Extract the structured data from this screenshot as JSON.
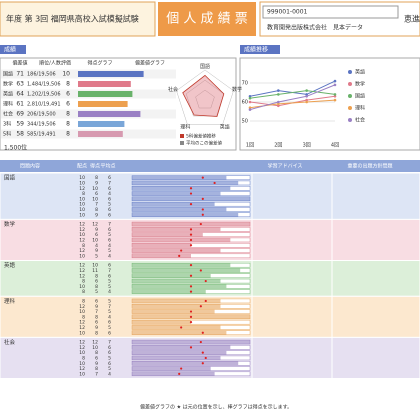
{
  "header": {
    "exam": "年度 第 3回 福岡県高校入試模擬試験",
    "title": "個 人 成 績 票",
    "student_id": "999001-0001",
    "school": "恵進塾",
    "publisher": "教育開発出版株式会社　見本データ"
  },
  "summary": {
    "label": "成績",
    "columns": [
      "偏差値",
      "順位/人数",
      "評価",
      "得点グラフ",
      "偏差値グラフ"
    ],
    "rows": [
      {
        "name": "国語",
        "color": "#5b74c2",
        "deviation": 71,
        "rank": "186/19,506",
        "grade": 10
      },
      {
        "name": "数学",
        "color": "#e07a8a",
        "deviation": 63,
        "rank": "1,484/19,506",
        "grade": 8
      },
      {
        "name": "英語",
        "color": "#69b26a",
        "deviation": 64,
        "rank": "1,202/19,506",
        "grade": 6
      },
      {
        "name": "理科",
        "color": "#eda04f",
        "deviation": 61,
        "rank": "2,810/19,491",
        "grade": 6
      },
      {
        "name": "社会",
        "color": "#9a80c4",
        "deviation": 69,
        "rank": "206/19,500",
        "grade": 8
      },
      {
        "name": "3科",
        "color": "#7aa6d8",
        "deviation": 59,
        "rank": "344/19,506",
        "grade": 8
      },
      {
        "name": "5科",
        "color": "#d79ab0",
        "deviation": 58,
        "rank": "585/19,491",
        "grade": 8
      }
    ],
    "total": "1,500位",
    "radar_lim": [
      30,
      80
    ],
    "radar_legend": [
      "5科偏差値推移",
      "平均のこの偏差値"
    ]
  },
  "trend": {
    "title": "成績推移",
    "x": [
      "1回",
      "2回",
      "3回",
      "4回"
    ],
    "ylim": [
      40,
      80
    ],
    "yticks": [
      50,
      60,
      70
    ],
    "series": [
      {
        "name": "英語",
        "color": "#5b74c2",
        "values": [
          63,
          66,
          64,
          71
        ]
      },
      {
        "name": "数学",
        "color": "#e07a8a",
        "values": [
          60,
          58,
          61,
          63
        ]
      },
      {
        "name": "国語",
        "color": "#69b26a",
        "values": [
          62,
          64,
          66,
          64
        ]
      },
      {
        "name": "理科",
        "color": "#eda04f",
        "values": [
          57,
          59,
          60,
          61
        ]
      },
      {
        "name": "社会",
        "color": "#9a80c4",
        "values": [
          56,
          60,
          63,
          69
        ]
      }
    ]
  },
  "detail": {
    "columns": [
      "問題内容",
      "配点",
      "得点",
      "平均点",
      "学習アドバイス",
      "重要の出題方針問題"
    ],
    "sections": [
      {
        "name": "国語",
        "bg": "#dde5f5",
        "color": "#5b74c2",
        "rows": [
          [
            10,
            8,
            6
          ],
          [
            10,
            9,
            7
          ],
          [
            12,
            10,
            6
          ],
          [
            8,
            6,
            4
          ],
          [
            10,
            10,
            6
          ],
          [
            10,
            7,
            5
          ],
          [
            10,
            8,
            6
          ],
          [
            10,
            9,
            6
          ]
        ]
      },
      {
        "name": "数学",
        "bg": "#f8dde3",
        "color": "#d6707f",
        "rows": [
          [
            12,
            12,
            7
          ],
          [
            12,
            9,
            6
          ],
          [
            10,
            6,
            5
          ],
          [
            12,
            10,
            6
          ],
          [
            8,
            4,
            4
          ],
          [
            12,
            9,
            5
          ],
          [
            10,
            5,
            4
          ]
        ]
      },
      {
        "name": "英語",
        "bg": "#dcefd9",
        "color": "#69b26a",
        "rows": [
          [
            12,
            10,
            6
          ],
          [
            12,
            11,
            7
          ],
          [
            12,
            8,
            6
          ],
          [
            8,
            6,
            5
          ],
          [
            10,
            8,
            5
          ],
          [
            8,
            5,
            4
          ]
        ]
      },
      {
        "name": "理科",
        "bg": "#fce8cf",
        "color": "#e39b4a",
        "rows": [
          [
            8,
            6,
            5
          ],
          [
            12,
            9,
            7
          ],
          [
            10,
            7,
            5
          ],
          [
            8,
            8,
            4
          ],
          [
            12,
            6,
            6
          ],
          [
            12,
            9,
            5
          ],
          [
            10,
            8,
            6
          ]
        ]
      },
      {
        "name": "社会",
        "bg": "#e6e0f1",
        "color": "#8a72b8",
        "rows": [
          [
            12,
            12,
            7
          ],
          [
            12,
            10,
            6
          ],
          [
            10,
            8,
            6
          ],
          [
            8,
            6,
            5
          ],
          [
            10,
            9,
            6
          ],
          [
            12,
            8,
            5
          ],
          [
            10,
            7,
            4
          ]
        ]
      }
    ]
  },
  "footer": "偏差値グラフの ★ は元の位置を示し、棒グラフは得点を示します。"
}
